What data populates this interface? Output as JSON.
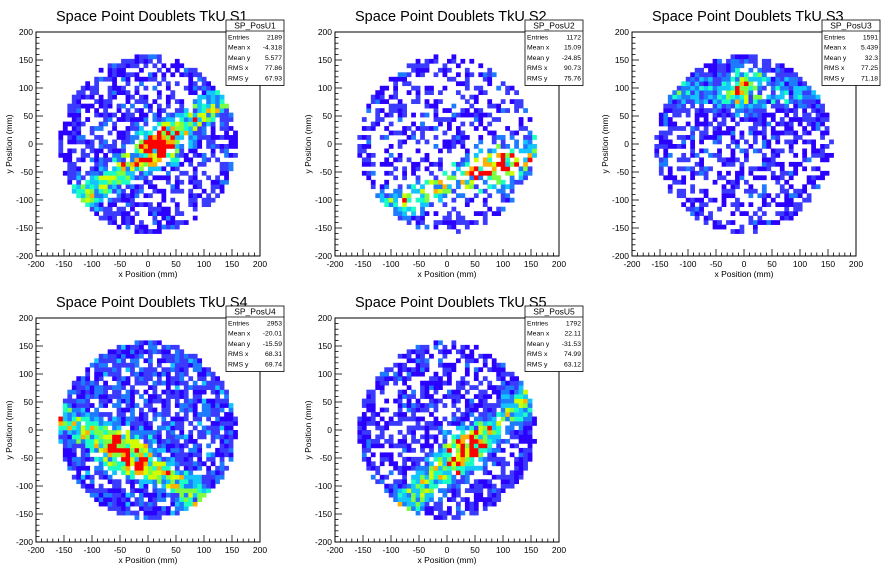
{
  "chart_data": [
    {
      "type": "heatmap",
      "title": "Space Point Doublets TkU S1",
      "xlabel": "x Position (mm)",
      "ylabel": "y Position (mm)",
      "xlim": [
        -200,
        200
      ],
      "ylim": [
        -200,
        200
      ],
      "xticks": [
        -200,
        -150,
        -100,
        -50,
        0,
        50,
        100,
        150,
        200
      ],
      "yticks": [
        -200,
        -150,
        -100,
        -50,
        0,
        50,
        100,
        150,
        200
      ],
      "stats": {
        "name": "SP_PosU1",
        "rows": [
          {
            "label": "Entries",
            "value": "2189"
          },
          {
            "label": "Mean x",
            "value": "-4.318"
          },
          {
            "label": "Mean y",
            "value": "5.577"
          },
          {
            "label": "RMS x",
            "value": "77.86"
          },
          {
            "label": "RMS y",
            "value": "67.93"
          }
        ]
      },
      "spread": "band",
      "band_angle_deg": 35,
      "hot_center": [
        20,
        0
      ],
      "seed": 11
    },
    {
      "type": "heatmap",
      "title": "Space Point Doublets TkU S2",
      "xlabel": "x Position (mm)",
      "ylabel": "y Position (mm)",
      "xlim": [
        -200,
        200
      ],
      "ylim": [
        -200,
        200
      ],
      "xticks": [
        -200,
        -150,
        -100,
        -50,
        0,
        50,
        100,
        150,
        200
      ],
      "yticks": [
        -200,
        -150,
        -100,
        -50,
        0,
        50,
        100,
        150,
        200
      ],
      "stats": {
        "name": "SP_PosU2",
        "rows": [
          {
            "label": "Entries",
            "value": "1172"
          },
          {
            "label": "Mean x",
            "value": "15.09"
          },
          {
            "label": "Mean y",
            "value": "-24.85"
          },
          {
            "label": "RMS x",
            "value": "90.73"
          },
          {
            "label": "RMS y",
            "value": "75.76"
          }
        ]
      },
      "spread": "sparse",
      "band_angle_deg": 20,
      "hot_center": [
        90,
        -40
      ],
      "seed": 23
    },
    {
      "type": "heatmap",
      "title": "Space Point Doublets TkU S3",
      "xlabel": "x Position (mm)",
      "ylabel": "y Position (mm)",
      "xlim": [
        -200,
        200
      ],
      "ylim": [
        -200,
        200
      ],
      "xticks": [
        -200,
        -150,
        -100,
        -50,
        0,
        50,
        100,
        150,
        200
      ],
      "yticks": [
        -200,
        -150,
        -100,
        -50,
        0,
        50,
        100,
        150,
        200
      ],
      "stats": {
        "name": "SP_PosU3",
        "rows": [
          {
            "label": "Entries",
            "value": "1591"
          },
          {
            "label": "Mean x",
            "value": "5.439"
          },
          {
            "label": "Mean y",
            "value": "32.3"
          },
          {
            "label": "RMS x",
            "value": "77.25"
          },
          {
            "label": "RMS y",
            "value": "71.18"
          }
        ]
      },
      "spread": "top",
      "band_angle_deg": 0,
      "hot_center": [
        0,
        100
      ],
      "seed": 37
    },
    {
      "type": "heatmap",
      "title": "Space Point Doublets TkU S4",
      "xlabel": "x Position (mm)",
      "ylabel": "y Position (mm)",
      "xlim": [
        -200,
        200
      ],
      "ylim": [
        -200,
        200
      ],
      "xticks": [
        -200,
        -150,
        -100,
        -50,
        0,
        50,
        100,
        150,
        200
      ],
      "yticks": [
        -200,
        -150,
        -100,
        -50,
        0,
        50,
        100,
        150,
        200
      ],
      "stats": {
        "name": "SP_PosU4",
        "rows": [
          {
            "label": "Entries",
            "value": "2953"
          },
          {
            "label": "Mean x",
            "value": "-20.01"
          },
          {
            "label": "Mean y",
            "value": "-15.59"
          },
          {
            "label": "RMS x",
            "value": "68.31"
          },
          {
            "label": "RMS y",
            "value": "69.74"
          }
        ]
      },
      "spread": "dense",
      "band_angle_deg": -30,
      "hot_center": [
        -40,
        -40
      ],
      "seed": 41
    },
    {
      "type": "heatmap",
      "title": "Space Point Doublets TkU S5",
      "xlabel": "x Position (mm)",
      "ylabel": "y Position (mm)",
      "xlim": [
        -200,
        200
      ],
      "ylim": [
        -200,
        200
      ],
      "xticks": [
        -200,
        -150,
        -100,
        -50,
        0,
        50,
        100,
        150,
        200
      ],
      "yticks": [
        -200,
        -150,
        -100,
        -50,
        0,
        50,
        100,
        150,
        200
      ],
      "stats": {
        "name": "SP_PosU5",
        "rows": [
          {
            "label": "Entries",
            "value": "1792"
          },
          {
            "label": "Mean x",
            "value": "22.11"
          },
          {
            "label": "Mean y",
            "value": "-31.53"
          },
          {
            "label": "RMS x",
            "value": "74.99"
          },
          {
            "label": "RMS y",
            "value": "63.12"
          }
        ]
      },
      "spread": "band",
      "band_angle_deg": 40,
      "hot_center": [
        30,
        -40
      ],
      "seed": 53
    }
  ],
  "palette": [
    "#2a00ff",
    "#3b3bff",
    "#1e7bff",
    "#13c4ff",
    "#1affc4",
    "#7bff40",
    "#d2ff00",
    "#ffb000",
    "#ff0000"
  ]
}
